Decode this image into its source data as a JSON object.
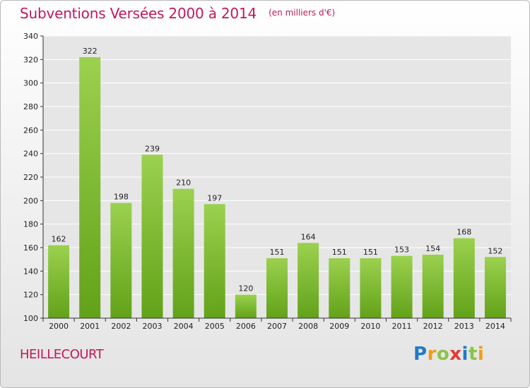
{
  "header": {
    "title": "Subventions Versées 2000 à 2014",
    "subtitle": "(en milliers d'€)"
  },
  "footer": {
    "commune": "HEILLECOURT",
    "logo_letters": [
      {
        "ch": "P",
        "color": "#1f7ac9"
      },
      {
        "ch": "r",
        "color": "#f39c12"
      },
      {
        "ch": "o",
        "color": "#8bc34a"
      },
      {
        "ch": "x",
        "color": "#e53935"
      },
      {
        "ch": "i",
        "color": "#1f7ac9"
      },
      {
        "ch": "t",
        "color": "#8bc34a"
      },
      {
        "ch": "i",
        "color": "#f39c12"
      }
    ]
  },
  "chart_data": {
    "type": "bar",
    "categories": [
      "2000",
      "2001",
      "2002",
      "2003",
      "2004",
      "2005",
      "2006",
      "2007",
      "2008",
      "2009",
      "2010",
      "2011",
      "2012",
      "2013",
      "2014"
    ],
    "values": [
      162,
      322,
      198,
      239,
      210,
      197,
      120,
      151,
      164,
      151,
      151,
      153,
      154,
      168,
      152
    ],
    "ylim": [
      100,
      340
    ],
    "yticks": [
      100,
      120,
      140,
      160,
      180,
      200,
      220,
      240,
      260,
      280,
      300,
      320,
      340
    ],
    "grid": true,
    "bar_color_top": "#9bd14f",
    "bar_color_bottom": "#62a219",
    "plot_background": "#e6e6e6",
    "grid_color": "#ffffff"
  }
}
